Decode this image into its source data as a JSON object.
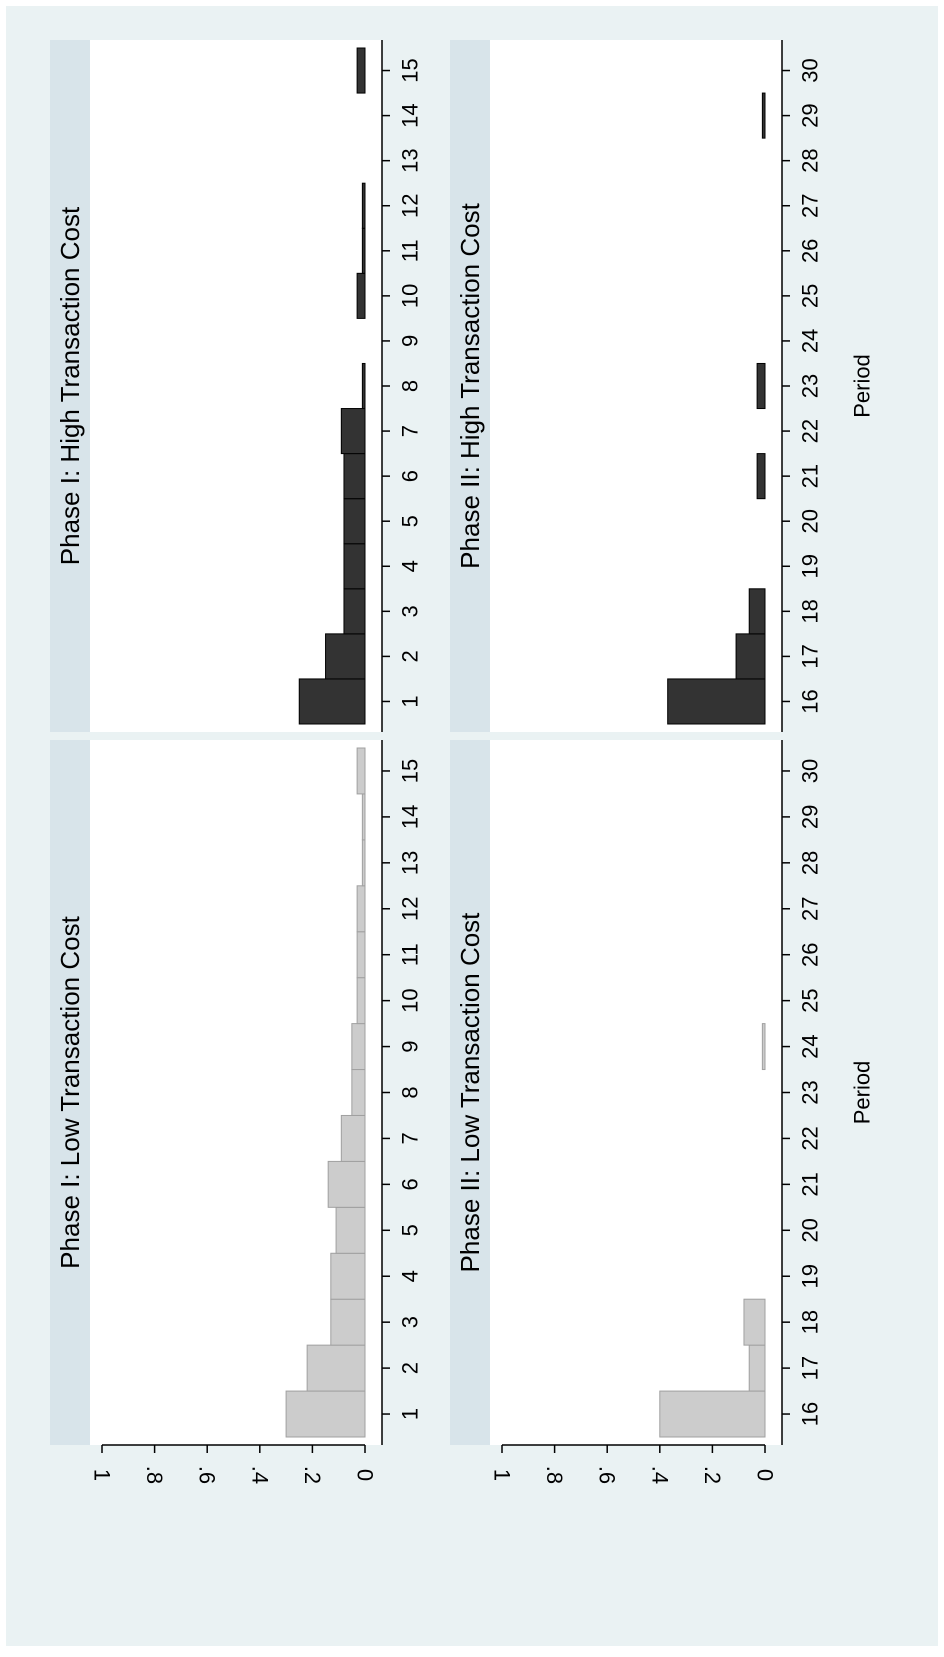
{
  "colors": {
    "background": "#ffffff",
    "plot_region": "#eaf2f3",
    "title_strip": "#d8e4ea",
    "low_bar_fill": "#cccccc",
    "low_bar_edge": "#a0a0a0",
    "high_bar_fill": "#333333",
    "high_bar_edge": "#000000"
  },
  "y_ticks": [
    "0",
    ".2",
    ".4",
    ".6",
    ".8",
    "1"
  ],
  "x_axis_title": "Period",
  "chart_data": [
    {
      "type": "bar",
      "title": "Phase I: Low Transaction Cost",
      "xlabel": "",
      "ylabel": "",
      "categories": [
        "1",
        "2",
        "3",
        "4",
        "5",
        "6",
        "7",
        "8",
        "9",
        "10",
        "11",
        "12",
        "13",
        "14",
        "15"
      ],
      "values": [
        0.3,
        0.22,
        0.13,
        0.13,
        0.11,
        0.14,
        0.09,
        0.05,
        0.05,
        0.03,
        0.03,
        0.03,
        0.01,
        0.01,
        0.03
      ],
      "ylim": [
        0,
        1
      ],
      "orientation": "rotated-90",
      "grid": false
    },
    {
      "type": "bar",
      "title": "Phase I: High Transaction Cost",
      "xlabel": "",
      "ylabel": "",
      "categories": [
        "1",
        "2",
        "3",
        "4",
        "5",
        "6",
        "7",
        "8",
        "9",
        "10",
        "11",
        "12",
        "13",
        "14",
        "15"
      ],
      "values": [
        0.25,
        0.15,
        0.08,
        0.08,
        0.08,
        0.08,
        0.09,
        0.01,
        0,
        0.03,
        0.01,
        0.01,
        0,
        0,
        0.03
      ],
      "ylim": [
        0,
        1
      ],
      "orientation": "rotated-90",
      "grid": false
    },
    {
      "type": "bar",
      "title": "Phase II: Low Transaction Cost",
      "xlabel": "Period",
      "ylabel": "",
      "categories": [
        "16",
        "17",
        "18",
        "19",
        "20",
        "21",
        "22",
        "23",
        "24",
        "25",
        "26",
        "27",
        "28",
        "29",
        "30"
      ],
      "values": [
        0.4,
        0.06,
        0.08,
        0,
        0,
        0,
        0,
        0,
        0.01,
        0,
        0,
        0,
        0,
        0,
        0
      ],
      "ylim": [
        0,
        1
      ],
      "orientation": "rotated-90",
      "grid": false
    },
    {
      "type": "bar",
      "title": "Phase II: High Transaction Cost",
      "xlabel": "Period",
      "ylabel": "",
      "categories": [
        "16",
        "17",
        "18",
        "19",
        "20",
        "21",
        "22",
        "23",
        "24",
        "25",
        "26",
        "27",
        "28",
        "29",
        "30"
      ],
      "values": [
        0.37,
        0.11,
        0.06,
        0,
        0,
        0.03,
        0,
        0.03,
        0,
        0,
        0,
        0,
        0,
        0.01,
        0
      ],
      "ylim": [
        0,
        1
      ],
      "orientation": "rotated-90",
      "grid": false
    }
  ]
}
